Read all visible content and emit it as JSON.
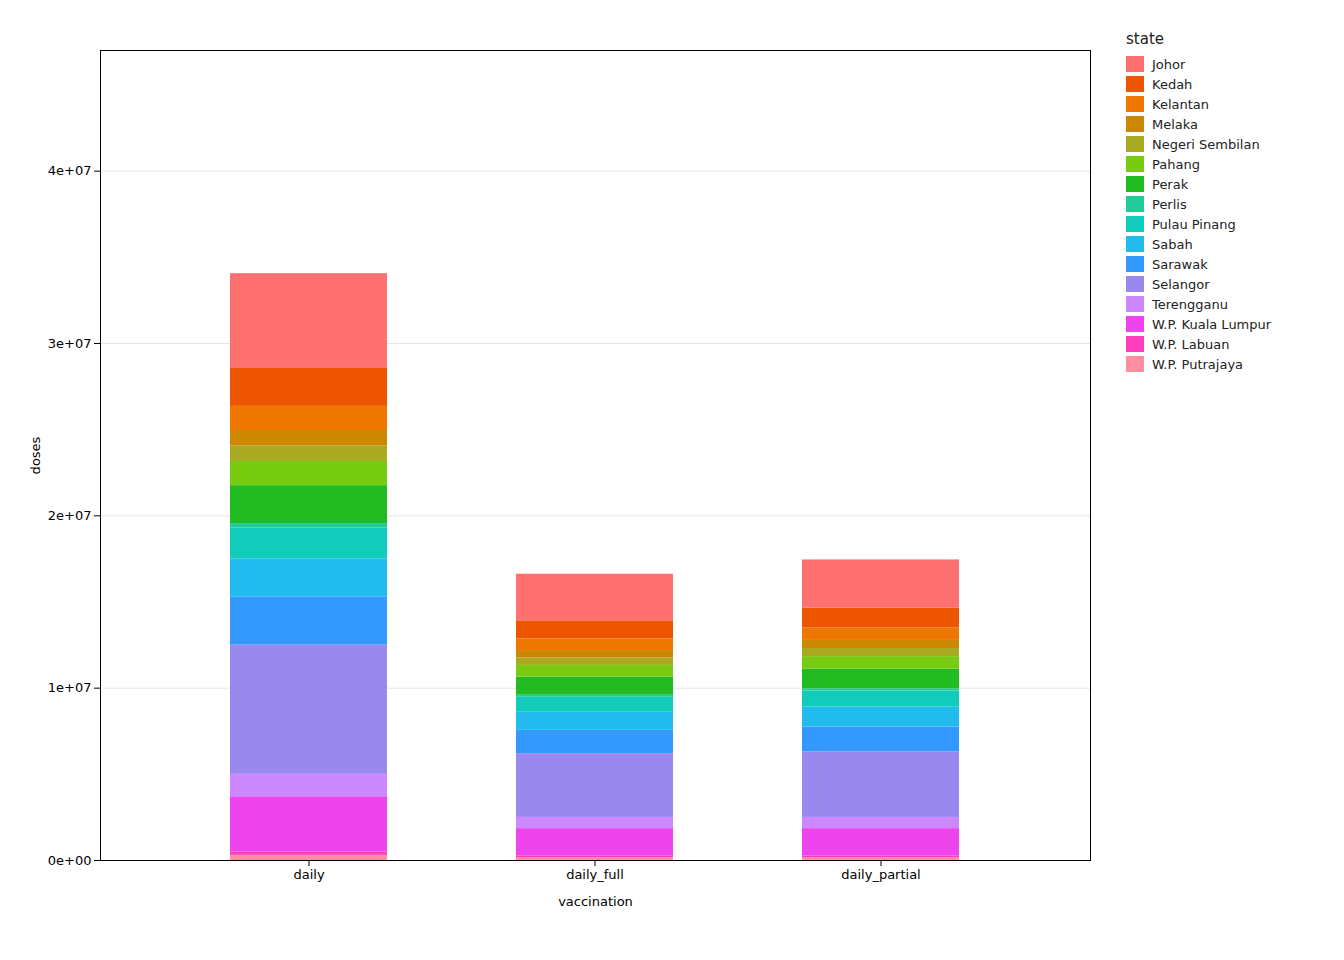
{
  "chart_data": {
    "type": "bar",
    "stacked": true,
    "categories": [
      "daily",
      "daily_full",
      "daily_partial"
    ],
    "series": [
      {
        "name": "W.P. Putrajaya",
        "color": "#FF8FA0",
        "values": [
          300000,
          150000,
          150000
        ]
      },
      {
        "name": "W.P. Labuan",
        "color": "#FF3EBF",
        "values": [
          200000,
          100000,
          100000
        ]
      },
      {
        "name": "W.P. Kuala Lumpur",
        "color": "#EE44EE",
        "values": [
          3200000,
          1600000,
          1600000
        ]
      },
      {
        "name": "Terengganu",
        "color": "#CC88FF",
        "values": [
          1300000,
          650000,
          650000
        ]
      },
      {
        "name": "Selangor",
        "color": "#9988EE",
        "values": [
          7500000,
          3700000,
          3800000
        ]
      },
      {
        "name": "Sarawak",
        "color": "#3399FF",
        "values": [
          2800000,
          1350000,
          1450000
        ]
      },
      {
        "name": "Sabah",
        "color": "#22BBEE",
        "values": [
          2200000,
          1050000,
          1150000
        ]
      },
      {
        "name": "Pulau Pinang",
        "color": "#11CCBB",
        "values": [
          1800000,
          870000,
          930000
        ]
      },
      {
        "name": "Perlis",
        "color": "#22CC99",
        "values": [
          250000,
          120000,
          130000
        ]
      },
      {
        "name": "Perak",
        "color": "#22BB22",
        "values": [
          2200000,
          1050000,
          1150000
        ]
      },
      {
        "name": "Pahang",
        "color": "#77CC11",
        "values": [
          1400000,
          680000,
          720000
        ]
      },
      {
        "name": "Negeri Sembilan",
        "color": "#AAAA22",
        "values": [
          900000,
          430000,
          470000
        ]
      },
      {
        "name": "Melaka",
        "color": "#CC8800",
        "values": [
          900000,
          430000,
          470000
        ]
      },
      {
        "name": "Kelantan",
        "color": "#EE7700",
        "values": [
          1400000,
          680000,
          720000
        ]
      },
      {
        "name": "Kedah",
        "color": "#EE5500",
        "values": [
          2200000,
          1050000,
          1150000
        ]
      },
      {
        "name": "Johor",
        "color": "#FF7070",
        "values": [
          5500000,
          2700000,
          2800000
        ]
      }
    ],
    "xlabel": "vaccination",
    "ylabel": "doses",
    "legend_title": "state",
    "ylim": [
      0,
      47000000
    ],
    "yticks": [
      {
        "value": 0,
        "label": "0e+00"
      },
      {
        "value": 10000000,
        "label": "1e+07"
      },
      {
        "value": 20000000,
        "label": "2e+07"
      },
      {
        "value": 30000000,
        "label": "3e+07"
      },
      {
        "value": 40000000,
        "label": "4e+07"
      }
    ],
    "grid": true,
    "legend": "right"
  }
}
